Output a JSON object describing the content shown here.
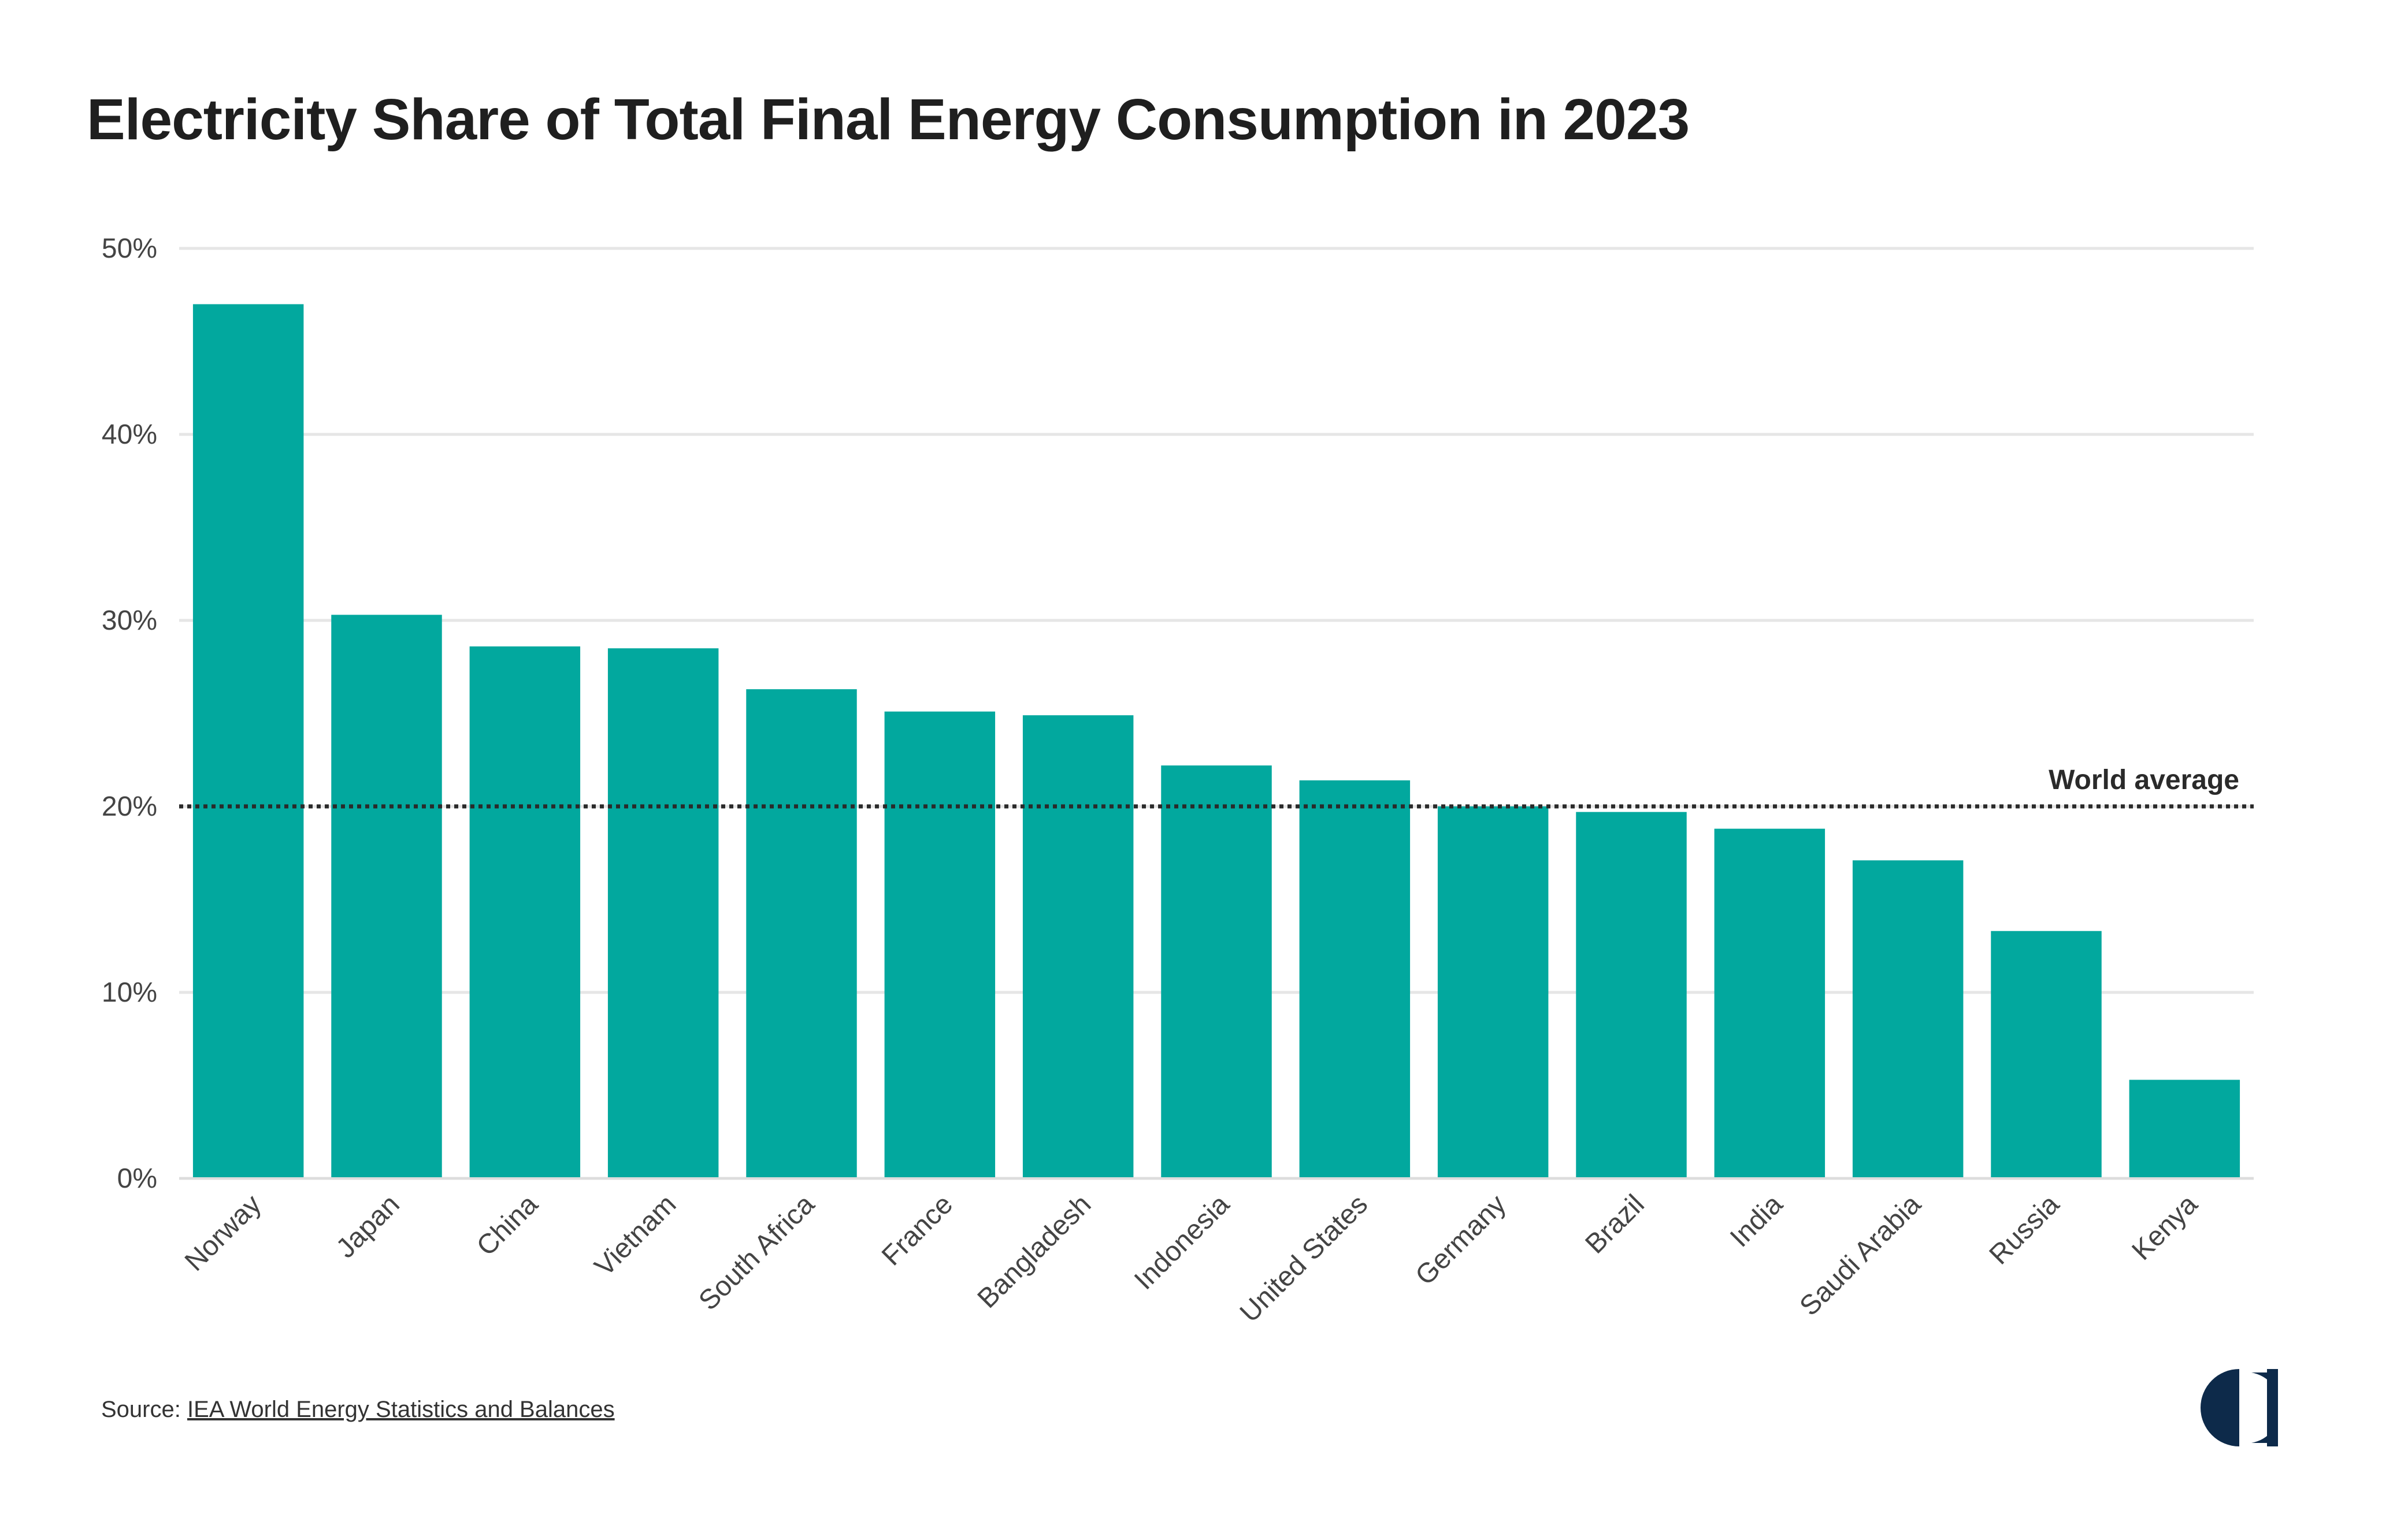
{
  "colors": {
    "bar": "#02a89e",
    "grid": "#e6e6e6",
    "axis": "#dddddd",
    "reference_line": "#2a2a2a",
    "logo": "#0d2a4a"
  },
  "source": {
    "prefix": "Source: ",
    "link_text": "IEA World Energy Statistics and Balances"
  },
  "logo": {
    "icon": "half-circle-logo-icon"
  },
  "chart_data": {
    "type": "bar",
    "title": "Electricity Share of Total Final Energy Consumption in 2023",
    "xlabel": "",
    "ylabel": "",
    "categories": [
      "Norway",
      "Japan",
      "China",
      "Vietnam",
      "South Africa",
      "France",
      "Bangladesh",
      "Indonesia",
      "United States",
      "Germany",
      "Brazil",
      "India",
      "Saudi Arabia",
      "Russia",
      "Kenya"
    ],
    "values": [
      47.0,
      30.3,
      28.6,
      28.5,
      26.3,
      25.1,
      24.9,
      22.2,
      21.4,
      20.0,
      19.7,
      18.8,
      17.1,
      13.3,
      5.3
    ],
    "unit": "%",
    "ylim": [
      0,
      50
    ],
    "yticks": [
      0,
      10,
      20,
      30,
      40,
      50
    ],
    "ytick_labels": [
      "0%",
      "10%",
      "20%",
      "30%",
      "40%",
      "50%"
    ],
    "grid": true,
    "legend": "none",
    "reference_line": {
      "label": "World average",
      "value": 20
    }
  }
}
